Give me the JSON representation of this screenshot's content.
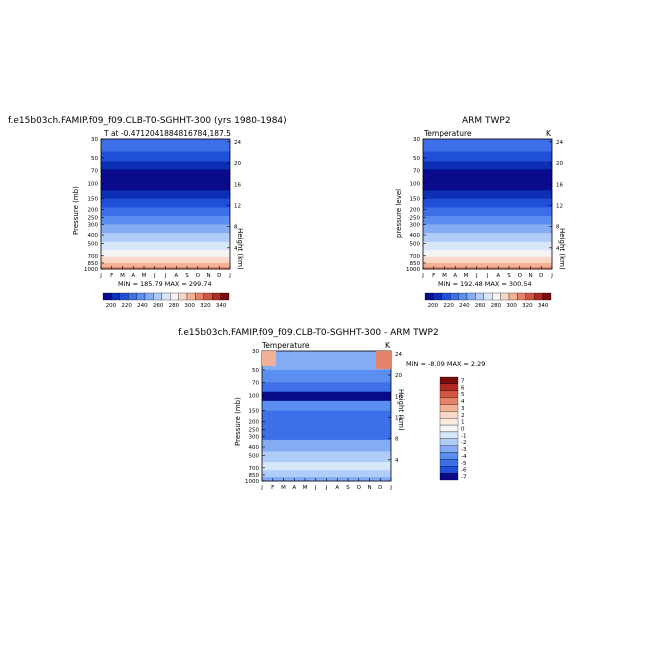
{
  "panels": [
    {
      "title": "f.e15b03ch.FAMIP.f09_f09.CLB-T0-SGHHT-300 (yrs 1980-1984)",
      "subtitle_left": "T at -0.471204188481678&#8203;4,187.5",
      "subtitle_left_text": "T at -0.47120418848167&#8203;84,187.5",
      "subtitle_right": "",
      "ylabel": "Pressure (mb)",
      "ylabel_right": "Height (km)",
      "minmax": "MIN = 185.79  MAX = 299.74"
    }
  ],
  "chart_data": [
    {
      "type": "heatmap",
      "title": "f.e15b03ch.FAMIP.f09_f09.CLB-T0-SGHHT-300 (yrs 1980-1984)",
      "subtitle_left": "T at -0.4712041884816784,187.5",
      "xlabel": "",
      "ylabel": "Pressure (mb)",
      "ylabel_right": "Height (km)",
      "x_ticks": [
        "J",
        "F",
        "M",
        "A",
        "M",
        "J",
        "J",
        "A",
        "S",
        "O",
        "N",
        "D",
        "J"
      ],
      "y_ticks_pressure": [
        30,
        50,
        70,
        100,
        150,
        200,
        250,
        300,
        400,
        500,
        700,
        850,
        1000
      ],
      "y_ticks_height": [
        24,
        20,
        16,
        12,
        8,
        4
      ],
      "min": 185.79,
      "max": 299.74,
      "colorbar_labels": [
        "200",
        "220",
        "240",
        "260",
        "280",
        "300",
        "320",
        "340"
      ],
      "minmax_text": "MIN = 185.79  MAX = 299.74"
    },
    {
      "type": "heatmap",
      "title": "ARM TWP2",
      "subtitle_left": "Temperature",
      "subtitle_right": "K",
      "xlabel": "",
      "ylabel": "pressure level",
      "ylabel_right": "Height (km)",
      "x_ticks": [
        "J",
        "F",
        "M",
        "A",
        "M",
        "J",
        "J",
        "A",
        "S",
        "O",
        "N",
        "D",
        "J"
      ],
      "y_ticks_pressure": [
        30,
        50,
        70,
        100,
        150,
        200,
        250,
        300,
        400,
        500,
        700,
        850,
        1000
      ],
      "y_ticks_height": [
        24,
        20,
        16,
        12,
        8,
        4
      ],
      "min": 192.48,
      "max": 300.54,
      "colorbar_labels": [
        "200",
        "220",
        "240",
        "260",
        "280",
        "300",
        "320",
        "340"
      ],
      "minmax_text": "MIN = 192.48  MAX = 300.54"
    },
    {
      "type": "heatmap",
      "title": "f.e15b03ch.FAMIP.f09_f09.CLB-T0-SGHHT-300 - ARM TWP2",
      "subtitle_left": "Temperature",
      "subtitle_right": "K",
      "xlabel": "",
      "ylabel": "Pressure (mb)",
      "ylabel_right": "Height (km)",
      "x_ticks": [
        "J",
        "F",
        "M",
        "A",
        "M",
        "J",
        "J",
        "A",
        "S",
        "O",
        "N",
        "D",
        "J"
      ],
      "y_ticks_pressure": [
        30,
        50,
        70,
        100,
        150,
        200,
        250,
        300,
        400,
        500,
        700,
        850,
        1000
      ],
      "y_ticks_height": [
        24,
        20,
        16,
        12,
        8,
        4
      ],
      "min": -8.09,
      "max": 2.29,
      "colorbar_labels": [
        "7",
        "6",
        "5",
        "4",
        "3",
        "2",
        "1",
        "0",
        "-1",
        "-2",
        "-3",
        "-4",
        "-5",
        "-6",
        "-7"
      ],
      "minmax_text": "MIN = -8.09  MAX =   2.29"
    }
  ],
  "texts": {
    "p1_title": "f.e15b03ch.FAMIP.f09_f09.CLB-T0-SGHHT-300 (yrs 1980-1984)",
    "p1_sub": "T at -0.4712041884816784,187.5",
    "p1_minmax": "MIN = 185.79  MAX = 299.74",
    "p1_ylabel": "Pressure (mb)",
    "p1_yrlabel": "Height (km)",
    "p2_title": "ARM TWP2",
    "p2_sub_left": "Temperature",
    "p2_sub_right": "K",
    "p2_minmax": "MIN = 192.48  MAX = 300.54",
    "p2_ylabel": "pressure level",
    "p2_yrlabel": "Height (km)",
    "p3_title": "f.e15b03ch.FAMIP.f09_f09.CLB-T0-SGHHT-300 - ARM TWP2",
    "p3_sub_left": "Temperature",
    "p3_sub_right": "K",
    "p3_minmax": "MIN = -8.09  MAX =   2.29",
    "p3_ylabel": "Pressure (mb)",
    "p3_yrlabel": "Height (km)"
  },
  "palette": {
    "temp": [
      "#0a0a8c",
      "#0d2fb4",
      "#1f4fd8",
      "#3c6fe8",
      "#5a8ef0",
      "#84acf4",
      "#b0ccf8",
      "#d8e6fa",
      "#f4f4f4",
      "#f8d8c4",
      "#f2b096",
      "#e6826a",
      "#d05642",
      "#b02a22",
      "#7a0c0c"
    ],
    "diff": [
      "#7a0c0c",
      "#b02a22",
      "#d05642",
      "#e6826a",
      "#f2b096",
      "#f8d8c4",
      "#fbece2",
      "#f4f4f4",
      "#d8e6fa",
      "#b0ccf8",
      "#84acf4",
      "#5a8ef0",
      "#3c6fe8",
      "#1f4fd8",
      "#0a0a8c"
    ]
  }
}
